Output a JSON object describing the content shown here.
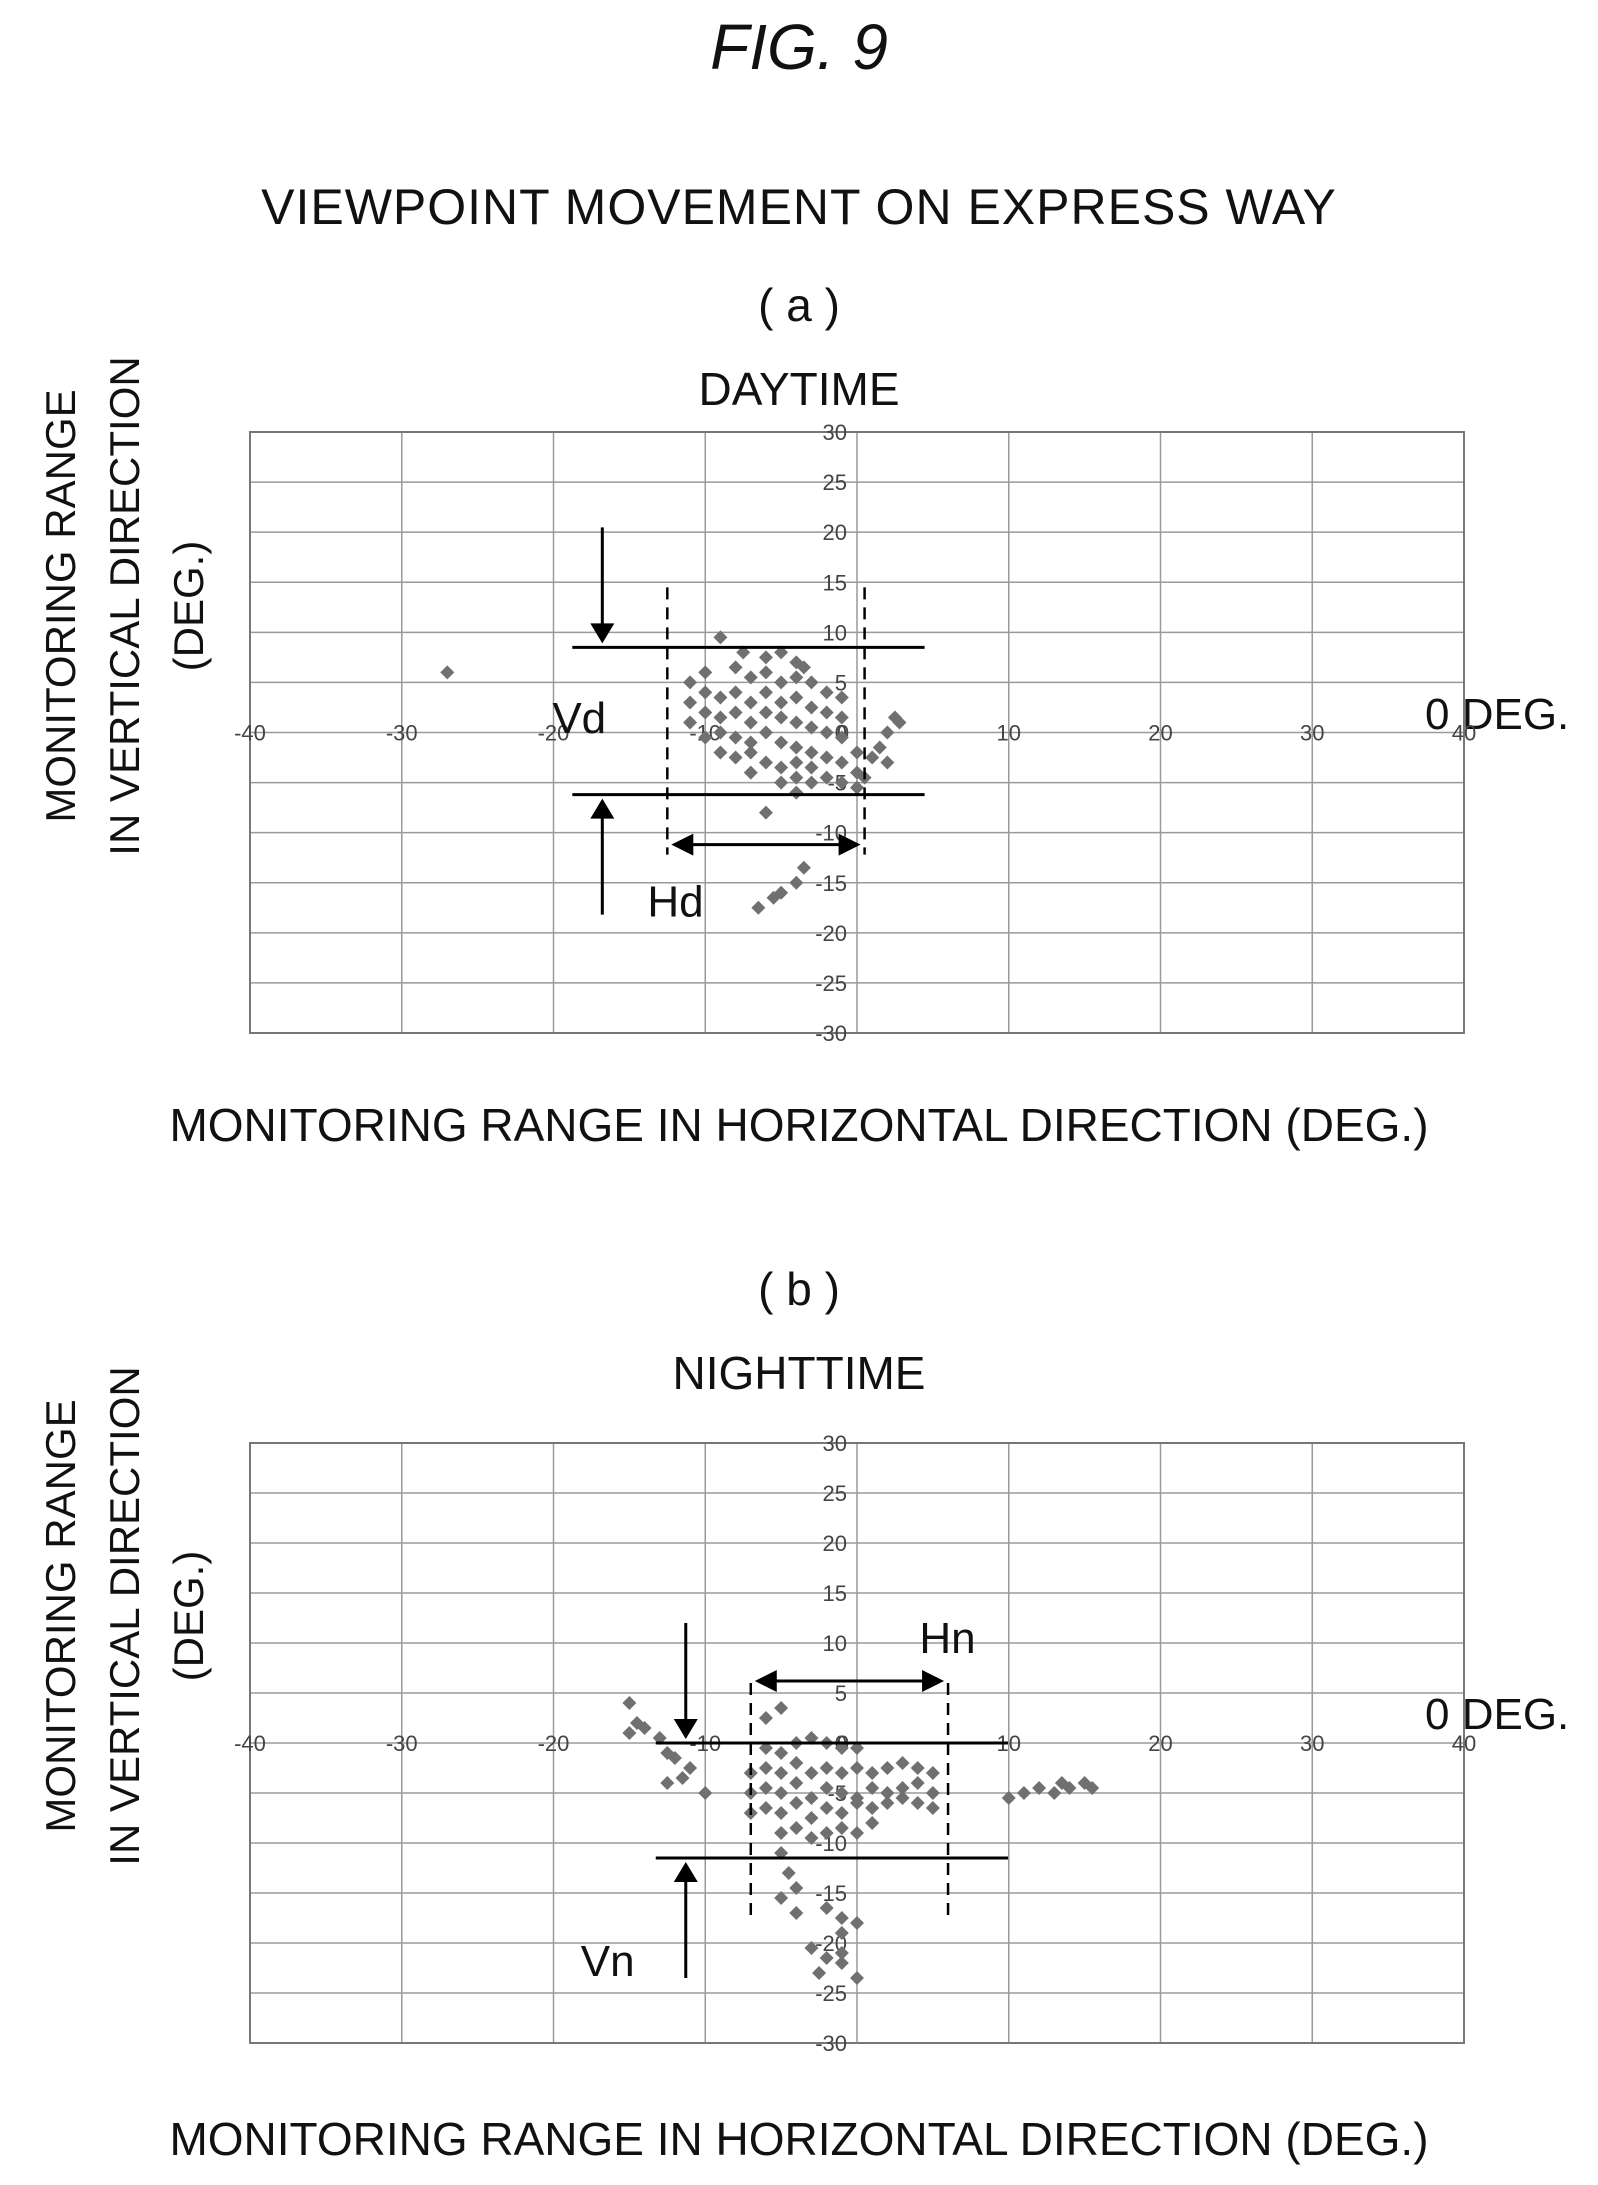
{
  "figure_label": "FIG. 9",
  "main_title": "VIEWPOINT MOVEMENT ON EXPRESS WAY",
  "chart_data": [
    {
      "type": "scatter",
      "panel": "( a )",
      "title": "DAYTIME",
      "xlabel": "MONITORING RANGE IN HORIZONTAL DIRECTION (DEG.)",
      "ylabel_line1": "MONITORING RANGE",
      "ylabel_line2": "IN VERTICAL DIRECTION",
      "ylabel_line3": "(DEG.)",
      "xlim": [
        -40,
        40
      ],
      "ylim": [
        -30,
        30
      ],
      "x_ticks": [
        -40,
        -30,
        -20,
        -10,
        0,
        10,
        20,
        30,
        40
      ],
      "y_ticks": [
        30,
        25,
        20,
        15,
        10,
        5,
        0,
        -5,
        -10,
        -15,
        -20,
        -25,
        -30
      ],
      "grid": true,
      "zero_label": "0 DEG.",
      "marker_color": "#707070",
      "annotations": {
        "vertical_range_label": "Vd",
        "horizontal_range_label": "Hd",
        "v_top": 8.5,
        "v_bottom": -6.2,
        "h_left": -12.5,
        "h_right": 0.5
      },
      "points": [
        [
          -27,
          6
        ],
        [
          -9,
          9.5
        ],
        [
          -7.5,
          8
        ],
        [
          -6,
          7.5
        ],
        [
          -5,
          8
        ],
        [
          -4,
          7
        ],
        [
          -3.5,
          6.5
        ],
        [
          -11,
          5
        ],
        [
          -10,
          6
        ],
        [
          -8,
          6.5
        ],
        [
          -7,
          5.5
        ],
        [
          -6,
          6
        ],
        [
          -5,
          5
        ],
        [
          -4,
          5.5
        ],
        [
          -3,
          5
        ],
        [
          -2,
          4
        ],
        [
          -1,
          3.5
        ],
        [
          -11,
          3
        ],
        [
          -10,
          4
        ],
        [
          -9,
          3.5
        ],
        [
          -8,
          4
        ],
        [
          -7,
          3
        ],
        [
          -6,
          4
        ],
        [
          -5,
          3
        ],
        [
          -4,
          3.5
        ],
        [
          -3,
          2.5
        ],
        [
          -2,
          2
        ],
        [
          -1,
          1.5
        ],
        [
          -11,
          1
        ],
        [
          -10,
          2
        ],
        [
          -9,
          1.5
        ],
        [
          -8,
          2
        ],
        [
          -7,
          1
        ],
        [
          -6,
          2
        ],
        [
          -5,
          1.5
        ],
        [
          -4,
          1
        ],
        [
          -3,
          0.5
        ],
        [
          -2,
          0
        ],
        [
          -1,
          -0.5
        ],
        [
          -10,
          -0.5
        ],
        [
          -9,
          0
        ],
        [
          -8,
          -0.5
        ],
        [
          -7,
          -1
        ],
        [
          -6,
          0
        ],
        [
          -5,
          -1
        ],
        [
          -4,
          -1.5
        ],
        [
          -3,
          -2
        ],
        [
          -2,
          -2.5
        ],
        [
          0,
          -2
        ],
        [
          -9,
          -2
        ],
        [
          -8,
          -2.5
        ],
        [
          -7,
          -2
        ],
        [
          -6,
          -3
        ],
        [
          -5,
          -3.5
        ],
        [
          -4,
          -3
        ],
        [
          -3,
          -3.5
        ],
        [
          -1,
          -3
        ],
        [
          0,
          -4
        ],
        [
          -7,
          -4
        ],
        [
          -5,
          -5
        ],
        [
          -4,
          -4.5
        ],
        [
          -3,
          -5
        ],
        [
          -2,
          -4.5
        ],
        [
          -1,
          -5
        ],
        [
          0.5,
          -4.5
        ],
        [
          0,
          -5.5
        ],
        [
          2.5,
          1.5
        ],
        [
          2.8,
          1
        ],
        [
          2,
          0
        ],
        [
          1.5,
          -1.5
        ],
        [
          2,
          -3
        ],
        [
          1,
          -2.5
        ],
        [
          -6,
          -8
        ],
        [
          -4,
          -6
        ],
        [
          -3.5,
          -13.5
        ],
        [
          -4,
          -15
        ],
        [
          -5,
          -16
        ],
        [
          -5.5,
          -16.5
        ],
        [
          -6.5,
          -17.5
        ]
      ]
    },
    {
      "type": "scatter",
      "panel": "( b )",
      "title": "NIGHTTIME",
      "xlabel": "MONITORING RANGE IN HORIZONTAL DIRECTION (DEG.)",
      "ylabel_line1": "MONITORING RANGE",
      "ylabel_line2": "IN VERTICAL DIRECTION",
      "ylabel_line3": "(DEG.)",
      "xlim": [
        -40,
        40
      ],
      "ylim": [
        -30,
        30
      ],
      "x_ticks": [
        -40,
        -30,
        -20,
        -10,
        0,
        10,
        20,
        30,
        40
      ],
      "y_ticks": [
        30,
        25,
        20,
        15,
        10,
        5,
        0,
        -5,
        -10,
        -15,
        -20,
        -25,
        -30
      ],
      "grid": true,
      "zero_label": "0 DEG.",
      "marker_color": "#707070",
      "annotations": {
        "vertical_range_label": "Vn",
        "horizontal_range_label": "Hn",
        "v_top": 0,
        "v_bottom": -11.5,
        "h_left": -7,
        "h_right": 6
      },
      "points": [
        [
          -15,
          4
        ],
        [
          -14.5,
          2
        ],
        [
          -15,
          1
        ],
        [
          -14,
          1.5
        ],
        [
          -13,
          0.5
        ],
        [
          -12.5,
          -1
        ],
        [
          -12,
          -1.5
        ],
        [
          -11,
          -2.5
        ],
        [
          -11.5,
          -3.5
        ],
        [
          -12.5,
          -4
        ],
        [
          -10,
          -5
        ],
        [
          -6,
          2.5
        ],
        [
          -5,
          3.5
        ],
        [
          -6,
          -0.5
        ],
        [
          -5,
          -1
        ],
        [
          -4,
          0
        ],
        [
          -3,
          0.5
        ],
        [
          -2,
          0
        ],
        [
          -1,
          -0.5
        ],
        [
          0,
          -0.5
        ],
        [
          -7,
          -3
        ],
        [
          -6,
          -2.5
        ],
        [
          -5,
          -3
        ],
        [
          -4,
          -2
        ],
        [
          -3,
          -3
        ],
        [
          -2,
          -2.5
        ],
        [
          -1,
          -3
        ],
        [
          0,
          -2.5
        ],
        [
          1,
          -3
        ],
        [
          2,
          -2.5
        ],
        [
          3,
          -2
        ],
        [
          4,
          -2.5
        ],
        [
          5,
          -3
        ],
        [
          -7,
          -5
        ],
        [
          -6,
          -4.5
        ],
        [
          -5,
          -5
        ],
        [
          -4,
          -4
        ],
        [
          -3,
          -5.5
        ],
        [
          -2,
          -4.5
        ],
        [
          -1,
          -5
        ],
        [
          0,
          -5.5
        ],
        [
          1,
          -4.5
        ],
        [
          2,
          -5
        ],
        [
          3,
          -4.5
        ],
        [
          4,
          -4
        ],
        [
          5,
          -5
        ],
        [
          -7,
          -7
        ],
        [
          -6,
          -6.5
        ],
        [
          -5,
          -7
        ],
        [
          -4,
          -6
        ],
        [
          -3,
          -7.5
        ],
        [
          -2,
          -6.5
        ],
        [
          -1,
          -7
        ],
        [
          0,
          -6
        ],
        [
          1,
          -6.5
        ],
        [
          2,
          -6
        ],
        [
          3,
          -5.5
        ],
        [
          4,
          -6
        ],
        [
          5,
          -6.5
        ],
        [
          -5,
          -9
        ],
        [
          -4,
          -8.5
        ],
        [
          -3,
          -9.5
        ],
        [
          -2,
          -9
        ],
        [
          -1,
          -8.5
        ],
        [
          0,
          -9
        ],
        [
          1,
          -8
        ],
        [
          -5,
          -11
        ],
        [
          -4.5,
          -13
        ],
        [
          -4,
          -14.5
        ],
        [
          -5,
          -15.5
        ],
        [
          -4,
          -17
        ],
        [
          -2,
          -16.5
        ],
        [
          -1,
          -17.5
        ],
        [
          0,
          -18
        ],
        [
          -1,
          -19
        ],
        [
          -3,
          -20.5
        ],
        [
          -2,
          -21.5
        ],
        [
          -1,
          -22
        ],
        [
          -2.5,
          -23
        ],
        [
          0,
          -23.5
        ],
        [
          -1,
          -21
        ],
        [
          10,
          -5.5
        ],
        [
          11,
          -5
        ],
        [
          12,
          -4.5
        ],
        [
          13,
          -5
        ],
        [
          13.5,
          -4
        ],
        [
          14,
          -4.5
        ],
        [
          15,
          -4
        ],
        [
          15.5,
          -4.5
        ]
      ]
    }
  ]
}
